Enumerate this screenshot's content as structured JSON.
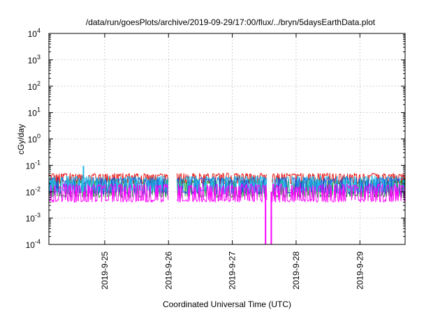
{
  "chart_data": {
    "type": "line",
    "title": "/data/run/goesPlots/archive/2019-09-29/17:00/flux/../bryn/5daysEarthData.plot",
    "xlabel": "Coordinated Universal Time (UTC)",
    "ylabel": "cGy/day",
    "y_scale": "log",
    "ylim": [
      0.0001,
      10000
    ],
    "xlim": [
      "2019-09-24 03:00",
      "2019-09-29 17:00"
    ],
    "grid": true,
    "y_ticks": [
      {
        "value": 0.0001,
        "base": "10",
        "exp": "-4"
      },
      {
        "value": 0.001,
        "base": "10",
        "exp": "-3"
      },
      {
        "value": 0.01,
        "base": "10",
        "exp": "-2"
      },
      {
        "value": 0.1,
        "base": "10",
        "exp": "-1"
      },
      {
        "value": 1,
        "base": "10",
        "exp": "0"
      },
      {
        "value": 10,
        "base": "10",
        "exp": "1"
      },
      {
        "value": 100,
        "base": "10",
        "exp": "2"
      },
      {
        "value": 1000,
        "base": "10",
        "exp": "3"
      },
      {
        "value": 10000,
        "base": "10",
        "exp": "4"
      }
    ],
    "x_ticks": [
      {
        "date": "2019-09-25",
        "label": "2019-9-25"
      },
      {
        "date": "2019-09-26",
        "label": "2019-9-26"
      },
      {
        "date": "2019-09-27",
        "label": "2019-9-27"
      },
      {
        "date": "2019-09-28",
        "label": "2019-9-28"
      },
      {
        "date": "2019-09-29",
        "label": "2019-9-29"
      }
    ],
    "gaps": [
      [
        "2019-09-26 00:00",
        "2019-09-26 03:00"
      ],
      [
        "2019-09-27 13:00",
        "2019-09-27 15:00"
      ]
    ],
    "series": [
      {
        "color": "#e8120f",
        "low": 0.02,
        "high": 0.05
      },
      {
        "color": "#1f9c3a",
        "low": 0.006,
        "high": 0.03
      },
      {
        "color": "#1a4fd8",
        "low": 0.008,
        "high": 0.035
      },
      {
        "color": "#1fb7e8",
        "low": 0.01,
        "high": 0.04
      },
      {
        "color": "#ff00ff",
        "low": 0.004,
        "high": 0.02
      }
    ],
    "spikes": [
      {
        "date": "2019-09-24 16:00",
        "value": 0.095
      },
      {
        "date": "2019-09-27 12:30",
        "value": 0.0001
      },
      {
        "date": "2019-09-27 14:40",
        "value": 0.0001
      }
    ]
  }
}
